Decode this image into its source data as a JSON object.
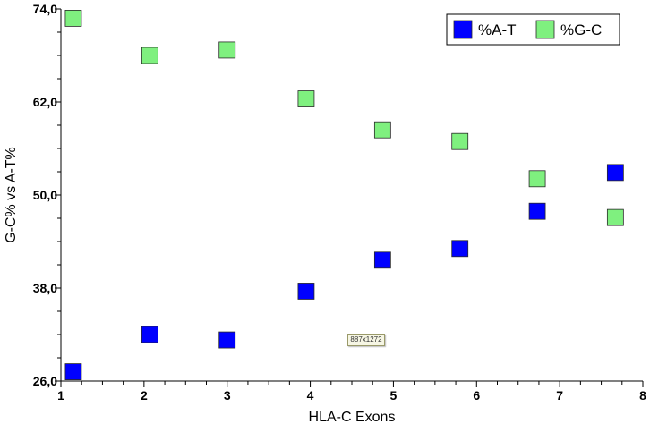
{
  "chart_data": {
    "type": "scatter",
    "xlabel": "HLA-C Exons",
    "ylabel": "G-C% vs A-T%",
    "xlim": [
      1,
      8
    ],
    "ylim": [
      26,
      74
    ],
    "xticks": [
      "1",
      "2",
      "3",
      "4",
      "5",
      "6",
      "7",
      "8"
    ],
    "yticks": [
      "26,0",
      "38,0",
      "50,0",
      "62,0",
      "74,0"
    ],
    "legend_position": "top-right",
    "series": [
      {
        "name": "%A-T",
        "color": "#0000ff",
        "points": [
          {
            "x": 1.15,
            "y": 27.2
          },
          {
            "x": 2.07,
            "y": 32.0
          },
          {
            "x": 3.0,
            "y": 31.3
          },
          {
            "x": 3.95,
            "y": 37.6
          },
          {
            "x": 4.87,
            "y": 41.6
          },
          {
            "x": 5.8,
            "y": 43.1
          },
          {
            "x": 6.73,
            "y": 47.9
          },
          {
            "x": 7.67,
            "y": 52.9
          }
        ]
      },
      {
        "name": "%G-C",
        "color": "#7ff07f",
        "points": [
          {
            "x": 1.15,
            "y": 72.8
          },
          {
            "x": 2.07,
            "y": 68.0
          },
          {
            "x": 3.0,
            "y": 68.7
          },
          {
            "x": 3.95,
            "y": 62.4
          },
          {
            "x": 4.87,
            "y": 58.4
          },
          {
            "x": 5.8,
            "y": 56.9
          },
          {
            "x": 6.73,
            "y": 52.1
          },
          {
            "x": 7.67,
            "y": 47.1
          }
        ]
      }
    ]
  },
  "stamp_text": "887x1272"
}
